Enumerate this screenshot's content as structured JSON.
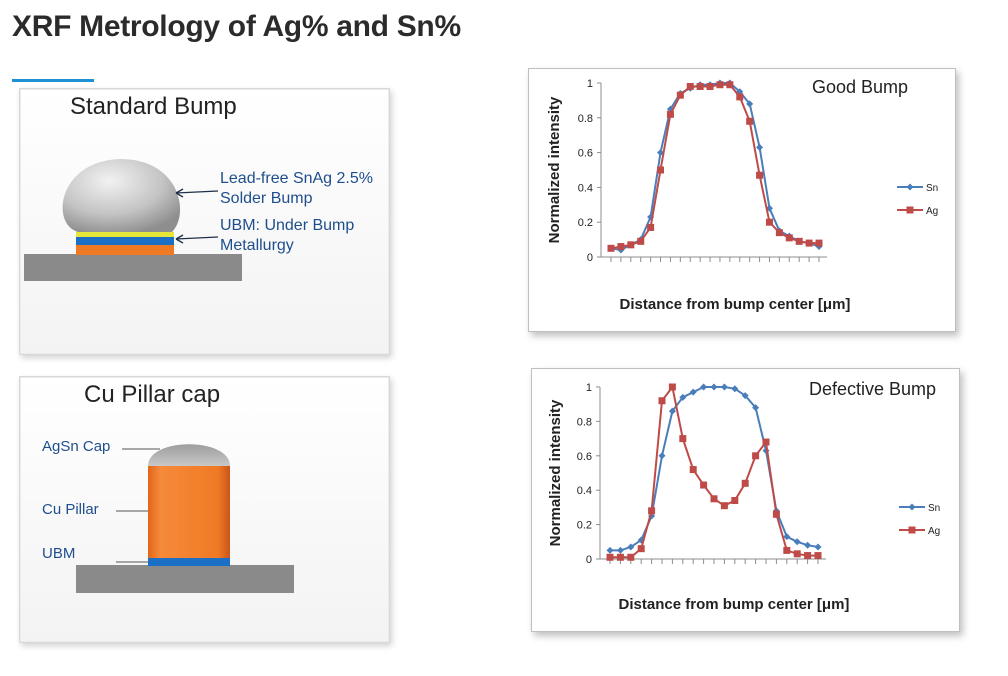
{
  "page": {
    "title": "XRF Metrology of Ag% and Sn%",
    "accent_color": "#1e90d6"
  },
  "standard_bump": {
    "title": "Standard Bump",
    "label_solder_line1": "Lead-free SnAg 2.5%",
    "label_solder_line2": "Solder Bump",
    "label_ubm_line1": "UBM: Under Bump",
    "label_ubm_line2": "Metallurgy",
    "colors": {
      "solder": "#c8c8c8",
      "ubm_yellow": "#e6e63a",
      "ubm_blue": "#1b6fc4",
      "ubm_orange": "#f07a24",
      "substrate": "#8a8a8a"
    }
  },
  "cu_pillar": {
    "title": "Cu Pillar cap",
    "label_cap": "AgSn Cap",
    "label_pillar": "Cu Pillar",
    "label_ubm": "UBM",
    "colors": {
      "cap": "#b5b5b5",
      "pillar": "#f07a24",
      "ubm": "#1b6fc4",
      "substrate": "#8a8a8a"
    }
  },
  "chart_data": [
    {
      "type": "line",
      "title": "Good  Bump",
      "xlabel": "Distance from bump center [μm]",
      "ylabel": "Normalized intensity",
      "ylim": [
        0,
        1
      ],
      "yticks": [
        "0",
        "0.2",
        "0.4",
        "0.6",
        "0.8",
        "1"
      ],
      "grid": false,
      "legend_position": "right",
      "series": [
        {
          "name": "Sn",
          "color": "#4a7ebb",
          "marker": "diamond",
          "values": [
            0.05,
            0.04,
            0.07,
            0.1,
            0.23,
            0.6,
            0.85,
            0.94,
            0.97,
            0.99,
            0.99,
            1.0,
            1.0,
            0.95,
            0.88,
            0.63,
            0.28,
            0.15,
            0.12,
            0.09,
            0.08,
            0.06
          ]
        },
        {
          "name": "Ag",
          "color": "#be4b48",
          "marker": "square",
          "values": [
            0.05,
            0.06,
            0.07,
            0.09,
            0.17,
            0.5,
            0.82,
            0.93,
            0.98,
            0.98,
            0.98,
            0.99,
            0.99,
            0.92,
            0.78,
            0.47,
            0.2,
            0.14,
            0.11,
            0.09,
            0.08,
            0.08
          ]
        }
      ]
    },
    {
      "type": "line",
      "title": "Defective Bump",
      "xlabel": "Distance from bump center [μm]",
      "ylabel": "Normalized intensity",
      "ylim": [
        0,
        1
      ],
      "yticks": [
        "0",
        "0.2",
        "0.4",
        "0.6",
        "0.8",
        "1"
      ],
      "grid": false,
      "legend_position": "right",
      "series": [
        {
          "name": "Sn",
          "color": "#4a7ebb",
          "marker": "diamond",
          "values": [
            0.05,
            0.05,
            0.07,
            0.11,
            0.25,
            0.6,
            0.86,
            0.94,
            0.97,
            1.0,
            1.0,
            1.0,
            0.99,
            0.95,
            0.88,
            0.63,
            0.28,
            0.13,
            0.1,
            0.08,
            0.07
          ]
        },
        {
          "name": "Ag",
          "color": "#be4b48",
          "marker": "square",
          "values": [
            0.01,
            0.01,
            0.01,
            0.06,
            0.28,
            0.92,
            1.0,
            0.7,
            0.52,
            0.43,
            0.35,
            0.31,
            0.34,
            0.44,
            0.6,
            0.68,
            0.26,
            0.05,
            0.03,
            0.02,
            0.02
          ]
        }
      ]
    }
  ]
}
